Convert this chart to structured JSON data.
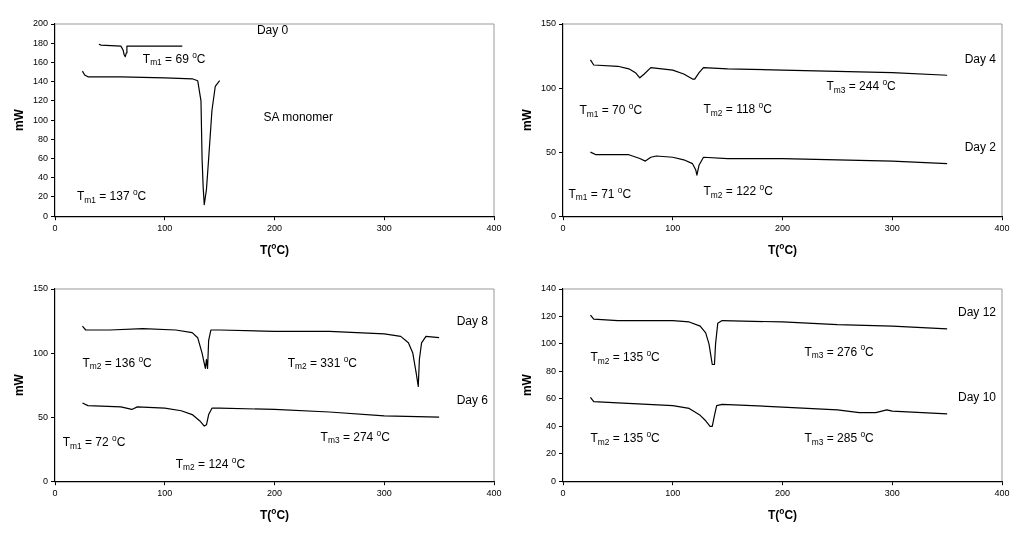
{
  "chart_data": [
    {
      "type": "line",
      "xlabel": "T($^{o}$C)",
      "ylabel": "mW",
      "xlim": [
        0,
        400
      ],
      "xticks": [
        0,
        100,
        200,
        300,
        400
      ],
      "ylim": [
        0,
        200
      ],
      "yticks": [
        0,
        20,
        40,
        60,
        80,
        100,
        120,
        140,
        160,
        180,
        200
      ],
      "grid": false,
      "legend": false,
      "marker": "none",
      "line_style": "solid",
      "series": [
        {
          "color": "#000000",
          "x": [
            40,
            42,
            60,
            62,
            63,
            64,
            65,
            65.5,
            80,
            100,
            116
          ],
          "values": [
            179,
            178,
            177,
            173,
            168,
            166,
            170,
            177,
            177,
            177,
            177
          ]
        },
        {
          "color": "#000000",
          "x": [
            25,
            27,
            30,
            60,
            100,
            125,
            130,
            133,
            134,
            135,
            136,
            137,
            138,
            140,
            143,
            146,
            150
          ],
          "values": [
            151,
            147,
            145,
            145,
            144,
            143,
            141,
            120,
            60,
            30,
            12,
            20,
            28,
            60,
            110,
            135,
            141
          ]
        }
      ],
      "annotations": [
        "Day 0",
        "SA monomer",
        "T$_{m1}$ = 69 $^{o}$C",
        "T$_{m1}$ = 137 $^{o}$C"
      ]
    },
    {
      "type": "line",
      "xlabel": "T($^{o}$C)",
      "ylabel": "mW",
      "xlim": [
        0,
        400
      ],
      "xticks": [
        0,
        100,
        200,
        300,
        400
      ],
      "ylim": [
        0,
        150
      ],
      "yticks": [
        0,
        50,
        100,
        150
      ],
      "grid": false,
      "legend": false,
      "marker": "none",
      "line_style": "solid",
      "series": [
        {
          "name": "Day 4",
          "color": "#000000",
          "x": [
            25,
            28,
            50,
            60,
            66,
            70,
            74,
            80,
            90,
            100,
            110,
            118,
            120,
            124,
            128,
            150,
            200,
            250,
            300,
            350
          ],
          "values": [
            122,
            118,
            117,
            115,
            112,
            108,
            111,
            116,
            115,
            114,
            111,
            107,
            107,
            112,
            116,
            115,
            114,
            113,
            112,
            110
          ]
        },
        {
          "name": "Day 2",
          "color": "#000000",
          "x": [
            25,
            30,
            60,
            70,
            75,
            80,
            85,
            100,
            110,
            118,
            121,
            122,
            124,
            128,
            150,
            200,
            250,
            300,
            350
          ],
          "values": [
            50,
            48,
            48,
            45,
            43,
            46,
            47,
            46,
            44,
            41,
            36,
            32,
            40,
            46,
            45,
            45,
            44,
            43,
            41
          ]
        }
      ],
      "annotations": [
        "T$_{m1}$ = 70 $^{o}$C",
        "T$_{m2}$ = 118 $^{o}$C",
        "T$_{m3}$ = 244 $^{o}$C",
        "T$_{m1}$ = 71 $^{o}$C",
        "T$_{m2}$ = 122 $^{o}$C"
      ]
    },
    {
      "type": "line",
      "xlabel": "T($^{o}$C)",
      "ylabel": "mW",
      "xlim": [
        0,
        400
      ],
      "xticks": [
        0,
        100,
        200,
        300,
        400
      ],
      "ylim": [
        0,
        150
      ],
      "yticks": [
        0,
        50,
        100,
        150
      ],
      "grid": false,
      "legend": false,
      "marker": "none",
      "line_style": "solid",
      "series": [
        {
          "name": "Day 8",
          "color": "#000000",
          "x": [
            25,
            28,
            50,
            80,
            110,
            125,
            130,
            134,
            136,
            137,
            138,
            139,
            140,
            142,
            150,
            200,
            250,
            300,
            315,
            322,
            326,
            329,
            331,
            332,
            334,
            338,
            350
          ],
          "values": [
            121,
            118,
            118,
            119,
            118,
            116,
            112,
            100,
            92,
            88,
            95,
            88,
            110,
            118,
            118,
            117,
            117,
            115,
            113,
            108,
            100,
            85,
            74,
            95,
            108,
            113,
            112
          ]
        },
        {
          "name": "Day 6",
          "color": "#000000",
          "x": [
            25,
            30,
            60,
            70,
            75,
            100,
            115,
            125,
            132,
            136,
            138,
            140,
            143,
            150,
            200,
            250,
            300,
            350
          ],
          "values": [
            61,
            59,
            58,
            56,
            58,
            57,
            55,
            52,
            47,
            43,
            44,
            52,
            57,
            57,
            56,
            54,
            51,
            50
          ]
        }
      ],
      "annotations": [
        "T$_{m2}$ = 136 $^{o}$C",
        "T$_{m2}$ = 331 $^{o}$C",
        "T$_{m1}$ = 72 $^{o}$C",
        "T$_{m2}$ = 124 $^{o}$C",
        "T$_{m3}$ = 274 $^{o}$C"
      ]
    },
    {
      "type": "line",
      "xlabel": "T($^{o}$C)",
      "ylabel": "mW",
      "xlim": [
        0,
        400
      ],
      "xticks": [
        0,
        100,
        200,
        300,
        400
      ],
      "ylim": [
        0,
        140
      ],
      "yticks": [
        0,
        20,
        40,
        60,
        80,
        100,
        120,
        140
      ],
      "grid": false,
      "legend": false,
      "marker": "none",
      "line_style": "solid",
      "series": [
        {
          "name": "Day 12",
          "color": "#000000",
          "x": [
            25,
            28,
            50,
            100,
            115,
            125,
            130,
            133,
            135,
            136,
            138,
            139,
            141,
            145,
            200,
            250,
            300,
            350
          ],
          "values": [
            121,
            118,
            117,
            117,
            116,
            113,
            108,
            100,
            90,
            85,
            85,
            100,
            115,
            117,
            116,
            114,
            113,
            111
          ]
        },
        {
          "name": "Day 10",
          "color": "#000000",
          "x": [
            25,
            28,
            50,
            100,
            115,
            125,
            130,
            134,
            136,
            138,
            140,
            145,
            200,
            250,
            270,
            285,
            295,
            300,
            350
          ],
          "values": [
            61,
            58,
            57,
            55,
            53,
            48,
            44,
            40,
            40,
            48,
            55,
            56,
            54,
            52,
            50,
            50,
            52,
            51,
            49
          ]
        }
      ],
      "annotations": [
        "T$_{m2}$ = 135 $^{o}$C",
        "T$_{m3}$ = 276 $^{o}$C",
        "T$_{m2}$ = 135 $^{o}$C",
        "T$_{m3}$ = 285 $^{o}$C"
      ]
    }
  ]
}
